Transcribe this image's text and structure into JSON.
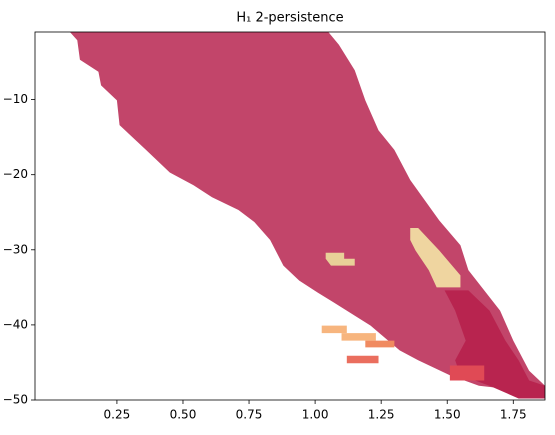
{
  "chart_data": {
    "type": "region",
    "title": "H₁ 2-persistence",
    "xlim": [
      -0.06,
      1.87
    ],
    "ylim": [
      -50,
      -1
    ],
    "xticks": [
      0.25,
      {
        "value": 0.5,
        "label": "0.50"
      },
      0.75,
      {
        "value": 1.0,
        "label": "1.00"
      },
      1.25,
      {
        "value": 1.5,
        "label": "1.50"
      },
      1.75
    ],
    "yticks": [
      {
        "value": -10,
        "label": "−10"
      },
      {
        "value": -20,
        "label": "−20"
      },
      {
        "value": -30,
        "label": "−30"
      },
      {
        "value": -40,
        "label": "−40"
      },
      {
        "value": -50,
        "label": "−50"
      }
    ],
    "regions": [
      {
        "color": "#c2456a",
        "x": [
          0.072,
          0.1,
          0.11,
          0.18,
          0.19,
          0.25,
          0.26,
          0.36,
          0.45,
          0.54,
          0.61,
          0.71,
          0.77,
          0.83,
          0.88,
          0.94,
          1.01,
          1.07,
          1.21,
          1.32,
          1.39,
          1.51,
          1.62,
          1.77,
          1.87,
          1.87,
          1.81,
          1.75,
          1.7,
          1.58,
          1.55,
          1.47,
          1.36,
          1.3,
          1.24,
          1.19,
          1.15,
          1.09,
          1.05
        ],
        "y": [
          -1,
          -2.1,
          -4.7,
          -6.3,
          -8.1,
          -10.1,
          -13.4,
          -16.7,
          -19.7,
          -21.4,
          -23,
          -24.7,
          -26.3,
          -28.7,
          -32.1,
          -34.1,
          -35.7,
          -37,
          -40.1,
          -43.4,
          -44.7,
          -46.7,
          -48.1,
          -48.7,
          -49.8,
          -48.1,
          -46.1,
          -42.1,
          -38.1,
          -32.7,
          -29.4,
          -26.1,
          -20.7,
          -16.7,
          -14.1,
          -10.1,
          -6.1,
          -2.7,
          -1
        ]
      },
      {
        "color": "#b8244f",
        "x": [
          1.49,
          1.58,
          1.66,
          1.72,
          1.77,
          1.81,
          1.87,
          1.87,
          1.77,
          1.66,
          1.55,
          1.53,
          1.57,
          1.53
        ],
        "y": [
          -35.4,
          -35.4,
          -38.1,
          -42.1,
          -44.7,
          -47.4,
          -48.1,
          -49.8,
          -49.8,
          -48.1,
          -46.7,
          -44.7,
          -42.1,
          -38.1
        ]
      },
      {
        "color": "#efd5a0",
        "x": [
          1.36,
          1.39,
          1.47,
          1.55,
          1.55,
          1.46,
          1.43,
          1.38,
          1.36
        ],
        "y": [
          -27.1,
          -27.1,
          -30.1,
          -33.4,
          -35,
          -35,
          -32.7,
          -30.1,
          -28.7
        ]
      },
      {
        "color": "#e8d098",
        "x": [
          1.04,
          1.11,
          1.11,
          1.15,
          1.15,
          1.06,
          1.04
        ],
        "y": [
          -30.4,
          -30.4,
          -31.2,
          -31.2,
          -32.1,
          -32.1,
          -31.2
        ]
      },
      {
        "color": "#f7b57e",
        "x": [
          1.025,
          1.12,
          1.12,
          1.025
        ],
        "y": [
          -40.1,
          -40.1,
          -41.1,
          -41.1
        ]
      },
      {
        "color": "#f7b57e",
        "x": [
          1.1,
          1.23,
          1.23,
          1.1
        ],
        "y": [
          -41.1,
          -41.1,
          -42.1,
          -42.1
        ]
      },
      {
        "color": "#f08a60",
        "x": [
          1.19,
          1.3,
          1.3,
          1.19
        ],
        "y": [
          -42.1,
          -42.1,
          -43.0,
          -43.0
        ]
      },
      {
        "color": "#ea6e5e",
        "x": [
          1.12,
          1.24,
          1.24,
          1.12
        ],
        "y": [
          -44.1,
          -44.1,
          -45.1,
          -45.1
        ]
      },
      {
        "color": "#e04a55",
        "x": [
          1.51,
          1.64,
          1.64,
          1.51
        ],
        "y": [
          -45.4,
          -45.4,
          -47.4,
          -47.4
        ]
      }
    ]
  }
}
